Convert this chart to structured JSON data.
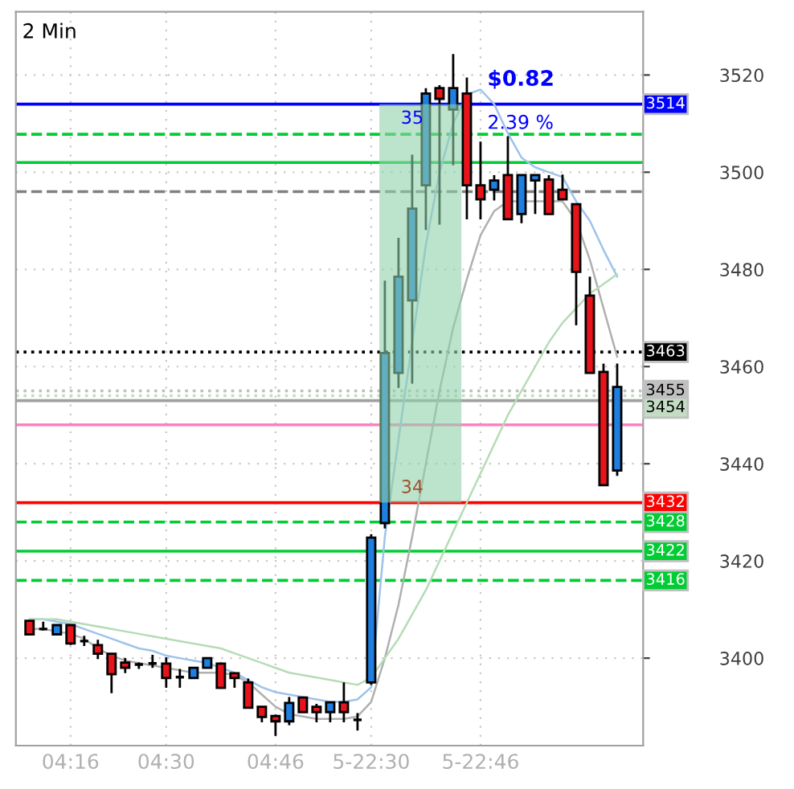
{
  "chart_data": {
    "type": "candlestick",
    "title": "2 Min",
    "categories": [
      null,
      null,
      null,
      "04:16",
      null,
      null,
      null,
      null,
      null,
      null,
      "04:30",
      null,
      null,
      null,
      null,
      null,
      null,
      null,
      "04:46",
      null,
      null,
      null,
      null,
      null,
      null,
      "5-22:30",
      null,
      null,
      null,
      null,
      null,
      null,
      null,
      "5-22:46",
      null,
      null,
      null,
      null,
      null,
      null,
      null,
      null,
      null,
      null
    ],
    "ohlc": [
      [
        3407.7,
        3407.7,
        3404.9,
        3404.9
      ],
      [
        3406.0,
        3407.5,
        3405.7,
        3406.0
      ],
      [
        3404.9,
        3406.8,
        3404.9,
        3406.8
      ],
      [
        3406.8,
        3406.8,
        3402.7,
        3403.0
      ],
      [
        3403.5,
        3404.6,
        3402.5,
        3403.5
      ],
      [
        3402.7,
        3403.8,
        3399.8,
        3400.9
      ],
      [
        3400.9,
        3400.9,
        3392.8,
        3396.7
      ],
      [
        3399.1,
        3400.0,
        3396.9,
        3398.0
      ],
      [
        3398.7,
        3399.1,
        3397.8,
        3398.7
      ],
      [
        3398.9,
        3400.7,
        3398.0,
        3398.9
      ],
      [
        3398.9,
        3400.2,
        3393.9,
        3395.9
      ],
      [
        3396.1,
        3397.8,
        3393.9,
        3396.1
      ],
      [
        3395.9,
        3398.0,
        3395.9,
        3398.0
      ],
      [
        3398.0,
        3400.0,
        3398.0,
        3400.0
      ],
      [
        3398.9,
        3399.1,
        3393.9,
        3393.9
      ],
      [
        3396.9,
        3396.9,
        3393.9,
        3395.9
      ],
      [
        3395.0,
        3395.8,
        3389.8,
        3389.8
      ],
      [
        3390.0,
        3390.0,
        3386.8,
        3387.9
      ],
      [
        3388.1,
        3388.4,
        3384.0,
        3387.0
      ],
      [
        3387.0,
        3392.0,
        3386.2,
        3390.8
      ],
      [
        3391.9,
        3391.9,
        3388.9,
        3388.9
      ],
      [
        3390.0,
        3390.6,
        3386.8,
        3388.9
      ],
      [
        3388.9,
        3390.9,
        3386.8,
        3390.9
      ],
      [
        3390.9,
        3395.0,
        3386.8,
        3388.9
      ],
      [
        3387.3,
        3388.7,
        3385.1,
        3387.3
      ],
      [
        3395.0,
        3425.5,
        3394.5,
        3424.8
      ],
      [
        3427.8,
        3477.7,
        3426.7,
        3462.8
      ],
      [
        3458.7,
        3486.5,
        3455.6,
        3478.5
      ],
      [
        3473.6,
        3503.6,
        3456.5,
        3492.5
      ],
      [
        3497.3,
        3517.3,
        3488.1,
        3516.2
      ],
      [
        3517.3,
        3517.9,
        3489.2,
        3515.1
      ],
      [
        3512.9,
        3524.3,
        3501.4,
        3517.3
      ],
      [
        3516.2,
        3519.5,
        3490.3,
        3497.3
      ],
      [
        3497.3,
        3506.3,
        3490.3,
        3494.4
      ],
      [
        3496.4,
        3499.4,
        3494.2,
        3498.3
      ],
      [
        3499.4,
        3507.4,
        3490.3,
        3490.3
      ],
      [
        3491.4,
        3499.4,
        3489.5,
        3499.4
      ],
      [
        3498.3,
        3499.4,
        3491.4,
        3499.4
      ],
      [
        3498.5,
        3499.4,
        3491.4,
        3491.4
      ],
      [
        3496.4,
        3499.5,
        3494.4,
        3494.4
      ],
      [
        3493.4,
        3493.4,
        3468.5,
        3479.5
      ],
      [
        3474.6,
        3478.5,
        3458.7,
        3458.7
      ],
      [
        3458.9,
        3460.6,
        3435.6,
        3435.6
      ],
      [
        3438.6,
        3460.6,
        3437.5,
        3455.8
      ]
    ],
    "colors": [
      "#e8141c",
      "#000000",
      "#1e7fe0",
      "#e8141c",
      "#000000",
      "#e8141c",
      "#e8141c",
      "#e8141c",
      "#000000",
      "#000000",
      "#e8141c",
      "#000000",
      "#1e7fe0",
      "#1e7fe0",
      "#e8141c",
      "#e8141c",
      "#e8141c",
      "#e8141c",
      "#e8141c",
      "#1e7fe0",
      "#e8141c",
      "#e8141c",
      "#1e7fe0",
      "#e8141c",
      "#000000",
      "#1e7fe0",
      "#1e7fe0",
      "#1e7fe0",
      "#1e7fe0",
      "#1e7fe0",
      "#e8141c",
      "#1e7fe0",
      "#e8141c",
      "#e8141c",
      "#1e7fe0",
      "#e8141c",
      "#1e7fe0",
      "#1e7fe0",
      "#e8141c",
      "#e8141c",
      "#e8141c",
      "#e8141c",
      "#e8141c",
      "#1e7fe0"
    ],
    "series": [
      {
        "type": "line",
        "color": "#b0b0b0",
        "values": [
          3406,
          3406,
          3405.5,
          3405,
          3404,
          3402,
          3400.5,
          3399.5,
          3399,
          3398.5,
          3398,
          3397.5,
          3397,
          3397,
          3397,
          3396.5,
          3395,
          3392.5,
          3390,
          3388.5,
          3388,
          3387.5,
          3387.5,
          3387.5,
          3388,
          3391,
          3400,
          3411,
          3425,
          3440,
          3455,
          3468,
          3478,
          3487,
          3492,
          3494,
          3494,
          3494,
          3494,
          3494,
          3490,
          3482,
          3472,
          3462
        ]
      },
      {
        "type": "line",
        "color": "#9ec3ea",
        "values": [
          3408,
          3408,
          3407.5,
          3407,
          3406,
          3405,
          3404,
          3403,
          3402,
          3401.5,
          3400.5,
          3400,
          3399.5,
          3399,
          3398,
          3397,
          3395.5,
          3394,
          3393,
          3392.5,
          3392,
          3391.5,
          3391,
          3391,
          3391.5,
          3394,
          3425,
          3445,
          3465,
          3485,
          3500,
          3510,
          3516,
          3517,
          3514,
          3508,
          3503,
          3501,
          3500,
          3499,
          3494,
          3490,
          3484,
          3478.5
        ]
      },
      {
        "type": "line",
        "color": "#b5dcb5",
        "values": [
          3408,
          3408,
          3408,
          3407.5,
          3407,
          3406.5,
          3406,
          3405.5,
          3405,
          3404.5,
          3404,
          3403.5,
          3403,
          3402.5,
          3402,
          3401,
          3400,
          3399,
          3398,
          3397,
          3396.5,
          3396,
          3395.5,
          3395,
          3394.5,
          3396,
          3400,
          3404,
          3409,
          3414,
          3420,
          3426,
          3432,
          3438,
          3444,
          3450,
          3455,
          3460,
          3465,
          3469,
          3472,
          3475,
          3477,
          3479
        ]
      }
    ],
    "ylim": [
      3382,
      3533
    ],
    "yticks": [
      3400,
      3420,
      3440,
      3460,
      3480,
      3500,
      3520
    ],
    "grid": true,
    "ref_lines": [
      {
        "axis": "y",
        "value": 3514,
        "label": "3514",
        "color": "#0000ff",
        "line_style": "solid"
      },
      {
        "axis": "y",
        "value": 3463,
        "label": "3463",
        "color": "#000000",
        "line_style": "dotted"
      },
      {
        "axis": "y",
        "value": 3455,
        "label": "3455",
        "color": "#c0c0c0",
        "line_style": "dotted"
      },
      {
        "axis": "y",
        "value": 3454,
        "label": "3454",
        "color": "#c4dcc4",
        "line_style": "dotted"
      },
      {
        "axis": "y",
        "value": 3432,
        "label": "3432",
        "color": "#ff0000",
        "line_style": "solid"
      },
      {
        "axis": "y",
        "value": 3428,
        "label": "3428",
        "color": "#00cc33",
        "line_style": "dashed"
      },
      {
        "axis": "y",
        "value": 3422,
        "label": "3422",
        "color": "#00cc33",
        "line_style": "solid"
      },
      {
        "axis": "y",
        "value": 3416,
        "label": "3416",
        "color": "#00cc33",
        "line_style": "dashed"
      },
      {
        "axis": "y",
        "value": 3507.8,
        "color": "#00cc33",
        "line_style": "dashed"
      },
      {
        "axis": "y",
        "value": 3502,
        "color": "#00cc33",
        "line_style": "solid"
      },
      {
        "axis": "y",
        "value": 3496,
        "color": "#808080",
        "line_style": "dashed"
      },
      {
        "axis": "y",
        "value": 3453,
        "color": "#a0a0a0",
        "line_style": "solid"
      },
      {
        "axis": "y",
        "value": 3448,
        "color": "#ff80c0",
        "line_style": "solid"
      }
    ],
    "bands": [
      {
        "axis": "y",
        "from": 3432,
        "to": 3514,
        "color": "#8fd0a8"
      }
    ],
    "annotations": [
      "$0.82",
      "2.39 %",
      "35",
      "34"
    ]
  }
}
